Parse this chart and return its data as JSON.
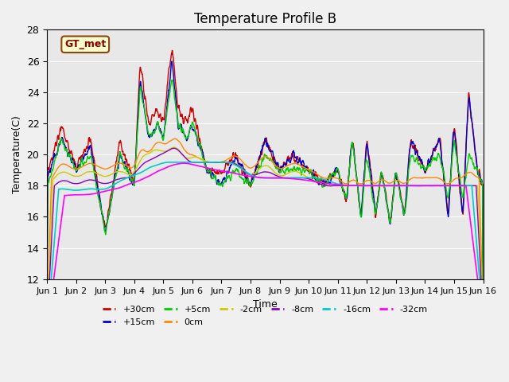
{
  "title": "Temperature Profile B",
  "xlabel": "Time",
  "ylabel": "Temperature(C)",
  "ylim": [
    12,
    28
  ],
  "xlim": [
    0,
    15
  ],
  "xtick_labels": [
    "Jun 1",
    "Jun 2",
    "Jun 3",
    "Jun 4",
    "Jun 5",
    "Jun 6",
    "Jun 7",
    "Jun 8",
    "Jun 9",
    "Jun 10",
    "Jun 11",
    "Jun 12",
    "Jun 13",
    "Jun 14",
    "Jun 15",
    "Jun 16"
  ],
  "ytick_labels": [
    "12",
    "14",
    "16",
    "18",
    "20",
    "22",
    "24",
    "26",
    "28"
  ],
  "background_color": "#e8e8e8",
  "series_colors": {
    "+30cm": "#cc0000",
    "+15cm": "#0000cc",
    "+5cm": "#00cc00",
    "0cm": "#ff8800",
    "-2cm": "#cccc00",
    "-8cm": "#8800cc",
    "-16cm": "#00cccc",
    "-32cm": "#ff00ff"
  },
  "gt_met_label": "GT_met",
  "legend_order": [
    "+30cm",
    "+15cm",
    "+5cm",
    "0cm",
    "-2cm",
    "-8cm",
    "-16cm",
    "-32cm"
  ]
}
